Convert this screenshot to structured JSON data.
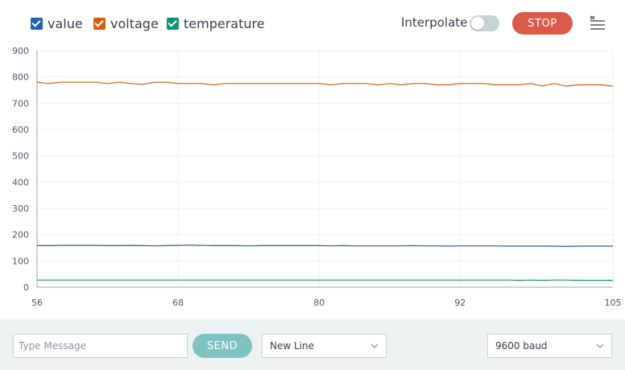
{
  "legend": {
    "items": [
      {
        "label": "value",
        "color": "#1f63aa"
      },
      {
        "label": "voltage",
        "color": "#d35f12"
      },
      {
        "label": "temperature",
        "color": "#12936c"
      }
    ]
  },
  "toolbar": {
    "interpolate_label": "Interpolate",
    "interpolate_on": false,
    "stop_label": "STOP",
    "clear_icon": "clear-output-icon"
  },
  "bottom": {
    "message_placeholder": "Type Message",
    "message_value": "",
    "send_label": "SEND",
    "line_ending": "New Line",
    "baud": "9600 baud"
  },
  "chart_data": {
    "type": "line",
    "xlim": [
      56,
      105
    ],
    "ylim": [
      0,
      900
    ],
    "x_ticks": [
      56,
      68,
      80,
      92,
      105
    ],
    "y_ticks": [
      0,
      100,
      200,
      300,
      400,
      500,
      600,
      700,
      800,
      900
    ],
    "grid": true,
    "x": [
      56,
      57,
      58,
      59,
      60,
      61,
      62,
      63,
      64,
      65,
      66,
      67,
      68,
      69,
      70,
      71,
      72,
      73,
      74,
      75,
      76,
      77,
      78,
      79,
      80,
      81,
      82,
      83,
      84,
      85,
      86,
      87,
      88,
      89,
      90,
      91,
      92,
      93,
      94,
      95,
      96,
      97,
      98,
      99,
      100,
      101,
      102,
      103,
      104,
      105
    ],
    "series": [
      {
        "name": "value",
        "color": "#1f63aa",
        "values": [
          158,
          158,
          159,
          159,
          159,
          159,
          158,
          158,
          159,
          158,
          157,
          158,
          159,
          160,
          159,
          158,
          158,
          158,
          157,
          158,
          158,
          158,
          158,
          158,
          158,
          157,
          158,
          157,
          157,
          157,
          157,
          157,
          158,
          157,
          157,
          156,
          157,
          157,
          157,
          157,
          156,
          156,
          156,
          156,
          156,
          155,
          156,
          156,
          156,
          156
        ]
      },
      {
        "name": "voltage",
        "color": "#d35f12",
        "values": [
          780,
          775,
          780,
          780,
          780,
          780,
          775,
          780,
          775,
          772,
          780,
          780,
          775,
          775,
          775,
          770,
          775,
          775,
          775,
          775,
          775,
          775,
          775,
          775,
          775,
          770,
          775,
          775,
          775,
          770,
          775,
          770,
          775,
          775,
          770,
          770,
          775,
          775,
          775,
          770,
          770,
          770,
          775,
          765,
          775,
          765,
          770,
          770,
          770,
          765
        ]
      },
      {
        "name": "temperature",
        "color": "#12936c",
        "values": [
          27,
          27,
          27,
          27,
          27,
          27,
          27,
          27,
          27,
          27,
          27,
          27,
          27,
          27,
          27,
          27,
          27,
          27,
          27,
          27,
          27,
          27,
          27,
          27,
          27,
          27,
          27,
          27,
          27,
          27,
          27,
          27,
          27,
          27,
          27,
          27,
          27,
          27,
          27,
          27,
          27,
          26,
          27,
          26,
          27,
          27,
          26,
          26,
          26,
          26
        ]
      }
    ]
  }
}
